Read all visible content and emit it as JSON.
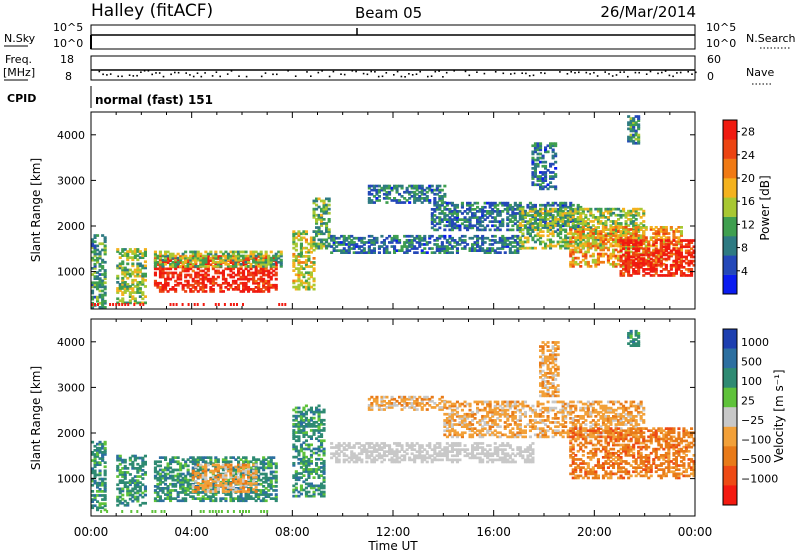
{
  "header": {
    "station": "Halley (fitACF)",
    "beam": "Beam 05",
    "date": "26/Mar/2014"
  },
  "strip_panels": {
    "nsky": {
      "label": "N.Sky",
      "tick_top": "10^5",
      "tick_bottom": "10^0"
    },
    "nsearch": {
      "label": "N.Search"
    },
    "freq": {
      "label_top": "Freq.",
      "label_unit": "[MHz]",
      "tick_top": "18",
      "tick_bottom": "8"
    },
    "nave": {
      "label": "Nave",
      "tick_top": "60",
      "tick_bottom": "0"
    },
    "cpid": {
      "label": "CPID",
      "value": "normal (fast) 151"
    }
  },
  "colors": {
    "power_scale": [
      "#0a1cf0",
      "#2448b8",
      "#2e7a82",
      "#3f9f4f",
      "#a8c832",
      "#f4b21e",
      "#f07a14",
      "#ec4412",
      "#f01a10"
    ],
    "velocity_scale": [
      "#1d3fb0",
      "#2c6fa0",
      "#2e8a72",
      "#5fc23a",
      "#c8c8c8",
      "#f2a038",
      "#e87a18",
      "#ee4a14",
      "#f41a10"
    ]
  },
  "chart_data": [
    {
      "type": "heatmap",
      "title": "Power",
      "xlabel": "Time UT",
      "ylabel": "Slant Range [km]",
      "x_ticks": [
        "00:00",
        "04:00",
        "08:00",
        "12:00",
        "16:00",
        "20:00",
        "00:00"
      ],
      "x_range_hours": [
        0,
        24
      ],
      "y_ticks": [
        1000,
        2000,
        3000,
        4000
      ],
      "ylim": [
        180,
        4500
      ],
      "colorbar": {
        "label": "Power [dB]",
        "ticks": [
          4,
          8,
          12,
          16,
          20,
          24,
          28
        ],
        "range": [
          0,
          30
        ]
      },
      "echo_regions": [
        {
          "t": [
            0.0,
            0.6
          ],
          "r": [
            200,
            1800
          ],
          "value": 10
        },
        {
          "t": [
            1.0,
            2.2
          ],
          "r": [
            300,
            1500
          ],
          "value": 14
        },
        {
          "t": [
            2.5,
            7.3
          ],
          "r": [
            550,
            1350
          ],
          "value": 28
        },
        {
          "t": [
            2.5,
            7.5
          ],
          "r": [
            1100,
            1450
          ],
          "value": 14
        },
        {
          "t": [
            8.0,
            8.8
          ],
          "r": [
            600,
            1900
          ],
          "value": 16
        },
        {
          "t": [
            8.8,
            9.4
          ],
          "r": [
            1500,
            2600
          ],
          "value": 12
        },
        {
          "t": [
            9.5,
            17.0
          ],
          "r": [
            1400,
            1800
          ],
          "value": 8
        },
        {
          "t": [
            11.0,
            14.0
          ],
          "r": [
            2500,
            2900
          ],
          "value": 8
        },
        {
          "t": [
            13.5,
            19.5
          ],
          "r": [
            1900,
            2500
          ],
          "value": 8
        },
        {
          "t": [
            17.5,
            18.5
          ],
          "r": [
            2800,
            3800
          ],
          "value": 8
        },
        {
          "t": [
            17.0,
            22.0
          ],
          "r": [
            1500,
            2400
          ],
          "value": 14
        },
        {
          "t": [
            19.0,
            23.5
          ],
          "r": [
            1100,
            2000
          ],
          "value": 20
        },
        {
          "t": [
            21.0,
            24.0
          ],
          "r": [
            900,
            1700
          ],
          "value": 28
        },
        {
          "t": [
            21.3,
            21.8
          ],
          "r": [
            3800,
            4400
          ],
          "value": 10
        }
      ]
    },
    {
      "type": "heatmap",
      "title": "Velocity",
      "xlabel": "Time UT",
      "ylabel": "Slant Range [km]",
      "x_ticks": [
        "00:00",
        "04:00",
        "08:00",
        "12:00",
        "16:00",
        "20:00",
        "00:00"
      ],
      "x_range_hours": [
        0,
        24
      ],
      "y_ticks": [
        1000,
        2000,
        3000,
        4000
      ],
      "ylim": [
        180,
        4500
      ],
      "colorbar": {
        "label": "Velocity [m s⁻¹]",
        "ticks": [
          "1000",
          "500",
          "100",
          "25",
          "−25",
          "−100",
          "−500",
          "−1000"
        ]
      },
      "echo_regions": [
        {
          "t": [
            0.0,
            0.6
          ],
          "r": [
            300,
            1800
          ],
          "value": 100
        },
        {
          "t": [
            1.0,
            2.2
          ],
          "r": [
            400,
            1500
          ],
          "value": 100
        },
        {
          "t": [
            2.5,
            7.3
          ],
          "r": [
            500,
            1450
          ],
          "value": 100
        },
        {
          "t": [
            4.0,
            6.5
          ],
          "r": [
            700,
            1300
          ],
          "value": -100
        },
        {
          "t": [
            8.0,
            9.2
          ],
          "r": [
            600,
            2600
          ],
          "value": 100
        },
        {
          "t": [
            9.5,
            17.5
          ],
          "r": [
            1350,
            1800
          ],
          "value": 0
        },
        {
          "t": [
            11.0,
            14.0
          ],
          "r": [
            2500,
            2800
          ],
          "value": -100
        },
        {
          "t": [
            14.0,
            22.0
          ],
          "r": [
            1900,
            2700
          ],
          "value": -100
        },
        {
          "t": [
            17.8,
            18.6
          ],
          "r": [
            2800,
            4000
          ],
          "value": -100
        },
        {
          "t": [
            19.0,
            24.0
          ],
          "r": [
            1000,
            2100
          ],
          "value": -500
        },
        {
          "t": [
            21.3,
            21.8
          ],
          "r": [
            3900,
            4300
          ],
          "value": 100
        }
      ]
    }
  ]
}
